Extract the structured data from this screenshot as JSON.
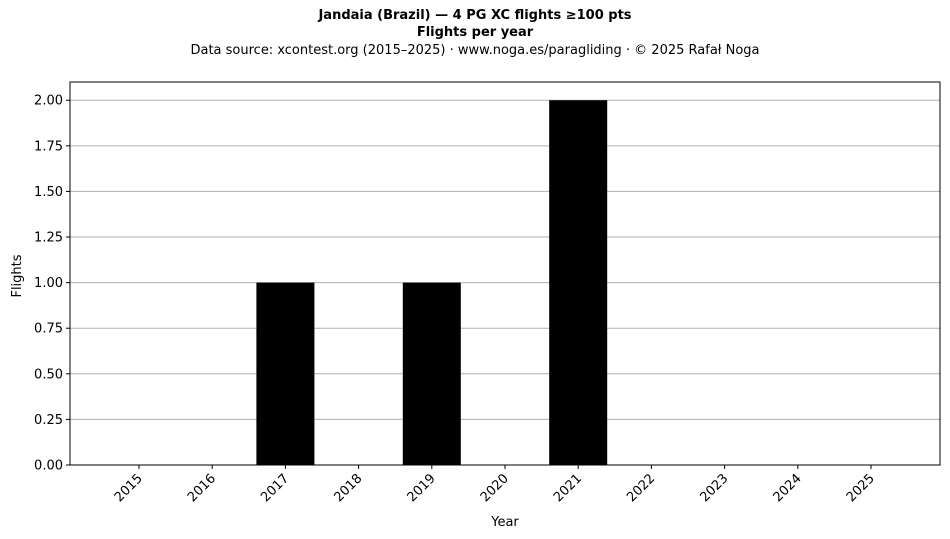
{
  "title": "Jandaia (Brazil)  —  4 PG XC flights ≥100 pts",
  "subtitle": "Flights per year",
  "source_line": "Data source: xcontest.org (2015–2025)  ·  www.noga.es/paragliding  ·  © 2025 Rafał Noga",
  "chart_data": {
    "type": "bar",
    "categories": [
      "2015",
      "2016",
      "2017",
      "2018",
      "2019",
      "2020",
      "2021",
      "2022",
      "2023",
      "2024",
      "2025"
    ],
    "values": [
      0,
      0,
      1,
      0,
      1,
      0,
      2,
      0,
      0,
      0,
      0
    ],
    "xlabel": "Year",
    "ylabel": "Flights",
    "ylim": [
      0,
      2.1
    ],
    "yticks": [
      "0.00",
      "0.25",
      "0.50",
      "0.75",
      "1.00",
      "1.25",
      "1.50",
      "1.75",
      "2.00"
    ],
    "grid": "y",
    "bar_color": "#000000",
    "grid_color": "#b0b0b0"
  }
}
